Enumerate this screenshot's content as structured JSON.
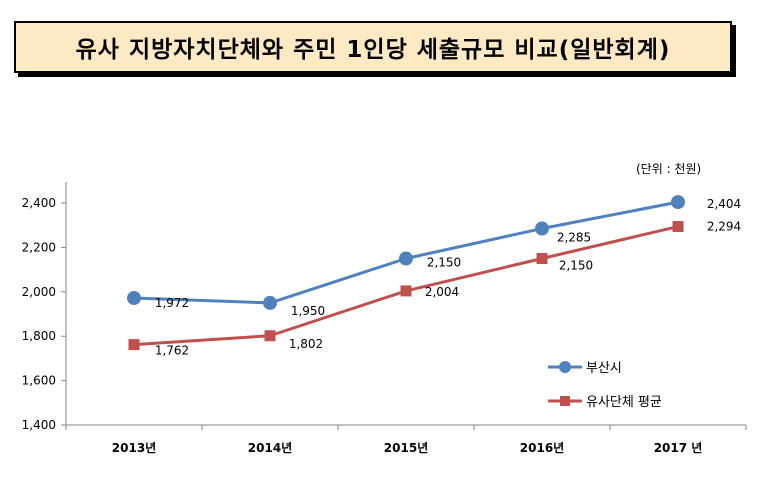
{
  "page": {
    "title": "유사 지방자치단체와 주민 1인당 세출규모 비교(일반회계)",
    "unit_note": "(단위 : 천원)"
  },
  "colors": {
    "series_1": "#4f81bd",
    "series_2": "#c0504d",
    "title_bg": "#fde9c4"
  },
  "chart_data": {
    "type": "line",
    "categories": [
      "2013년",
      "2014년",
      "2015년",
      "2016년",
      "2017 년"
    ],
    "series": [
      {
        "name": "부산시",
        "values": [
          1972,
          1950,
          2150,
          2285,
          2404
        ],
        "labels": [
          "1,972",
          "1,950",
          "2,150",
          "2,285",
          "2,404"
        ],
        "marker": "circle"
      },
      {
        "name": "유사단체 평균",
        "values": [
          1762,
          1802,
          2004,
          2150,
          2294
        ],
        "labels": [
          "1,762",
          "1,802",
          "2,004",
          "2,150",
          "2,294"
        ],
        "marker": "square"
      }
    ],
    "yticks": [
      "1,400",
      "1,600",
      "1,800",
      "2,000",
      "2,200",
      "2,400"
    ],
    "ylim": [
      1400,
      2500
    ],
    "grid": false,
    "legend": "bottom-right"
  }
}
